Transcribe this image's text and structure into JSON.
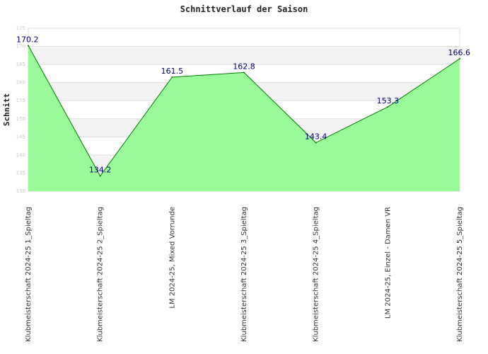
{
  "chart_data": {
    "type": "area",
    "title": "Schnittverlauf der Saison",
    "xlabel": "",
    "ylabel": "Schnitt",
    "ylim": [
      130,
      175
    ],
    "yticks": [
      130,
      135,
      140,
      145,
      150,
      155,
      160,
      165,
      170,
      175
    ],
    "grid": true,
    "categories": [
      "Klubmeisterschaft 2024-25   1_Spieltag",
      "Klubmeisterschaft 2024-25   2_Spieltag",
      "LM 2024-25, Mixed Vorrunde",
      "Klubmeisterschaft 2024-25   3_Spieltag",
      "Klubmeisterschaft 2024-25   4_Spieltag",
      "LM 2024-25, Einzel - Damen VR",
      "Klubmeisterschaft 2024-25   5_Spieltag"
    ],
    "series": [
      {
        "values": [
          170.2,
          134.2,
          161.5,
          162.8,
          143.4,
          153.3,
          166.6
        ],
        "labels": [
          "170.2",
          "134.2",
          "161.5",
          "162.8",
          "143.4",
          "153.3",
          "166.6"
        ]
      }
    ],
    "colors": {
      "fill": "#98fb98",
      "line": "#007a00",
      "label": "#000080",
      "band": "#f2f2f2",
      "grid": "#dddddd"
    }
  }
}
